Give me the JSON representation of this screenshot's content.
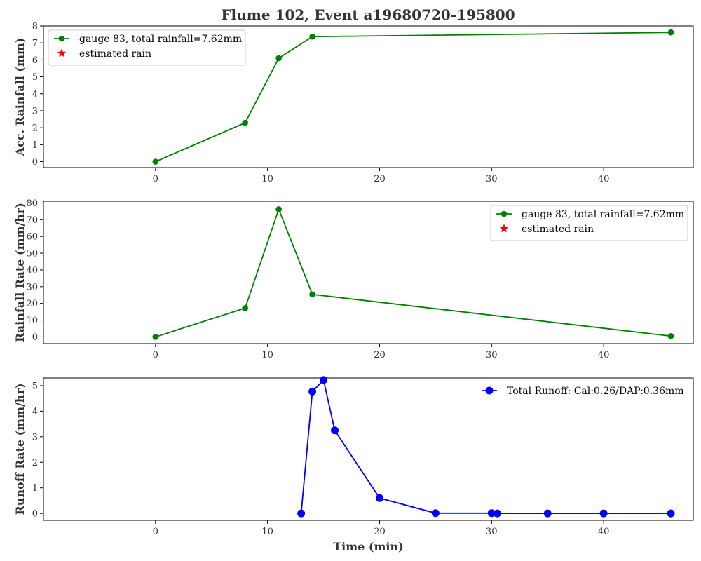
{
  "figure_title": "Flume 102, Event a19680720-195800",
  "chart_data": [
    {
      "type": "line",
      "ylabel": "Acc. Rainfall (mm)",
      "xlabel": "",
      "xlim": [
        -10,
        48
      ],
      "ylim": [
        -0.35,
        8
      ],
      "xticks": [
        0,
        10,
        20,
        30,
        40
      ],
      "yticks": [
        0,
        1,
        2,
        3,
        4,
        5,
        6,
        7,
        8
      ],
      "grid": false,
      "legend": "top-left",
      "legend_frame": true,
      "series": [
        {
          "name": "gauge 83, total rainfall=7.62mm",
          "color": "#008000",
          "marker": "circle",
          "x": [
            0,
            8,
            11,
            14,
            46
          ],
          "y": [
            0.0,
            2.29,
            6.1,
            7.37,
            7.62
          ]
        },
        {
          "name": "estimated rain",
          "color": "#ff0000",
          "marker": "star",
          "x": [],
          "y": []
        }
      ]
    },
    {
      "type": "line",
      "ylabel": "Rainfall Rate (mm/hr)",
      "xlabel": "",
      "xlim": [
        -10,
        48
      ],
      "ylim": [
        -4,
        81
      ],
      "xticks": [
        0,
        10,
        20,
        30,
        40
      ],
      "yticks": [
        0,
        10,
        20,
        30,
        40,
        50,
        60,
        70,
        80
      ],
      "grid": false,
      "legend": "top-right",
      "legend_frame": true,
      "series": [
        {
          "name": "gauge 83, total rainfall=7.62mm",
          "color": "#008000",
          "marker": "circle",
          "x": [
            0,
            8,
            11,
            14,
            46
          ],
          "y": [
            0.0,
            17.2,
            76.2,
            25.4,
            0.5
          ]
        },
        {
          "name": "estimated rain",
          "color": "#ff0000",
          "marker": "star",
          "x": [],
          "y": []
        }
      ]
    },
    {
      "type": "line",
      "ylabel": "Runoff Rate (mm/hr)",
      "xlabel": "Time (min)",
      "xlim": [
        -10,
        48
      ],
      "ylim": [
        -0.27,
        5.3
      ],
      "xticks": [
        0,
        10,
        20,
        30,
        40
      ],
      "yticks": [
        0,
        1,
        2,
        3,
        4,
        5
      ],
      "grid": false,
      "legend": "top-right",
      "legend_frame": false,
      "series": [
        {
          "name": "Total Runoff: Cal:0.26/DAP:0.36mm",
          "color": "#0000ff",
          "marker": "circle-large",
          "x": [
            13,
            14,
            15,
            16,
            20,
            25,
            30,
            30.5,
            35,
            40,
            46
          ],
          "y": [
            0.0,
            4.77,
            5.22,
            3.25,
            0.6,
            0.01,
            0.01,
            0.0,
            0.0,
            0.0,
            0.0
          ]
        }
      ]
    }
  ]
}
